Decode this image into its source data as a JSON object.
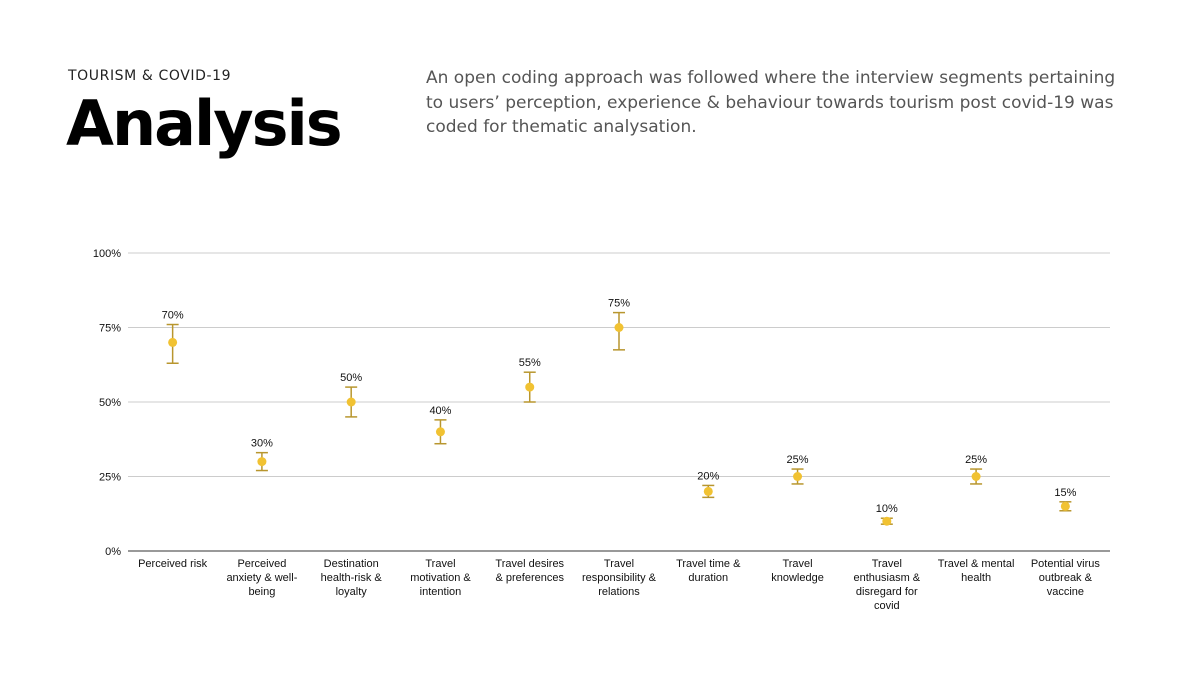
{
  "header": {
    "eyebrow": "TOURISM & COVID-19",
    "title": "Analysis",
    "description": "An open coding approach was followed where the interview segments pertaining to users’ perception, experience & behaviour towards tourism post covid-19 was coded for thematic analysation."
  },
  "chart_data": {
    "type": "scatter",
    "ylim": [
      0,
      100
    ],
    "yticks": [
      0,
      25,
      50,
      75,
      100
    ],
    "ytick_labels": [
      "0%",
      "25%",
      "50%",
      "75%",
      "100%"
    ],
    "grid": true,
    "categories": [
      "Perceived risk",
      "Perceived anxiety & well-being",
      "Destination health-risk & loyalty",
      "Travel motivation & intention",
      "Travel desires & preferences",
      "Travel responsibility & relations",
      "Travel time & duration",
      "Travel knowledge",
      "Travel enthusiasm & disregard for covid",
      "Travel & mental health",
      "Potential virus outbreak & vaccine"
    ],
    "category_lines": [
      [
        "Perceived risk"
      ],
      [
        "Perceived",
        "anxiety & well-",
        "being"
      ],
      [
        "Destination",
        "health-risk &",
        "loyalty"
      ],
      [
        "Travel",
        "motivation &",
        "intention"
      ],
      [
        "Travel desires",
        "& preferences"
      ],
      [
        "Travel",
        "responsibility &",
        "relations"
      ],
      [
        "Travel time &",
        "duration"
      ],
      [
        "Travel",
        "knowledge"
      ],
      [
        "Travel",
        "enthusiasm &",
        "disregard for",
        "covid"
      ],
      [
        "Travel & mental",
        "health"
      ],
      [
        "Potential virus",
        "outbreak &",
        "vaccine"
      ]
    ],
    "values": [
      70,
      30,
      50,
      40,
      55,
      75,
      20,
      25,
      10,
      25,
      15
    ],
    "value_labels": [
      "70%",
      "30%",
      "50%",
      "40%",
      "55%",
      "75%",
      "20%",
      "25%",
      "10%",
      "25%",
      "15%"
    ],
    "error_low": [
      63,
      27,
      45,
      36,
      50,
      67.5,
      18,
      22.5,
      9,
      22.5,
      13.5
    ],
    "error_high": [
      76,
      33,
      55,
      44,
      60,
      80,
      22,
      27.5,
      11,
      27.5,
      16.5
    ],
    "colors": {
      "point": "#F1C232",
      "error_bar": "#B8962E",
      "grid": "#CCCCCC",
      "axis": "#333333"
    }
  }
}
